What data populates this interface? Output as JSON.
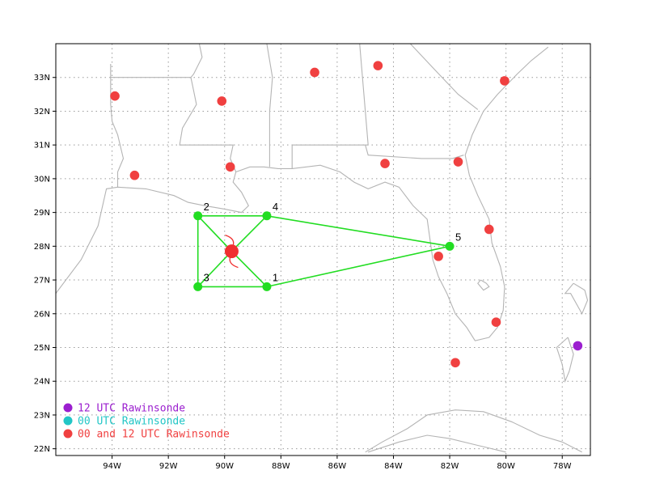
{
  "colors": {
    "frame": "#000000",
    "grid": "#9a9a9a",
    "coast": "#b4b4b4",
    "rawin_both": "#f04040",
    "rawin_12": "#9b1fcf",
    "rawin_00": "#22c6c6",
    "pattern": "#22dd22",
    "center": "#f03030"
  },
  "axes": {
    "lon_ticks": [
      -94,
      -92,
      -90,
      -88,
      -86,
      -84,
      -82,
      -80,
      -78
    ],
    "lon_labels": [
      "94W",
      "92W",
      "90W",
      "88W",
      "86W",
      "84W",
      "82W",
      "80W",
      "78W"
    ],
    "lat_ticks": [
      22,
      23,
      24,
      25,
      26,
      27,
      28,
      29,
      30,
      31,
      32,
      33
    ],
    "lat_labels": [
      "22N",
      "23N",
      "24N",
      "25N",
      "26N",
      "27N",
      "28N",
      "29N",
      "30N",
      "31N",
      "32N",
      "33N"
    ],
    "lon_range": [
      -96.0,
      -77.0
    ],
    "lat_range": [
      21.8,
      34.0
    ],
    "grid": "dotted"
  },
  "legend": {
    "position": "bottom-left",
    "items": [
      {
        "label": "12 UTC Rawinsonde",
        "color": "#9b1fcf"
      },
      {
        "label": "00 UTC Rawinsonde",
        "color": "#22c6c6"
      },
      {
        "label": "00 and 12 UTC Rawinsonde",
        "color": "#f04040"
      }
    ]
  },
  "rawinsondes": [
    {
      "lon": -93.9,
      "lat": 32.45,
      "type": "both"
    },
    {
      "lon": -90.1,
      "lat": 32.3,
      "type": "both"
    },
    {
      "lon": -86.8,
      "lat": 33.15,
      "type": "both"
    },
    {
      "lon": -84.55,
      "lat": 33.35,
      "type": "both"
    },
    {
      "lon": -80.05,
      "lat": 32.9,
      "type": "both"
    },
    {
      "lon": -93.2,
      "lat": 30.1,
      "type": "both"
    },
    {
      "lon": -89.8,
      "lat": 30.35,
      "type": "both"
    },
    {
      "lon": -84.3,
      "lat": 30.45,
      "type": "both"
    },
    {
      "lon": -81.7,
      "lat": 30.5,
      "type": "both"
    },
    {
      "lon": -80.6,
      "lat": 28.5,
      "type": "both"
    },
    {
      "lon": -82.4,
      "lat": 27.7,
      "type": "both"
    },
    {
      "lon": -80.35,
      "lat": 25.75,
      "type": "both"
    },
    {
      "lon": -81.8,
      "lat": 24.55,
      "type": "both"
    },
    {
      "lon": -77.45,
      "lat": 25.05,
      "type": "12"
    }
  ],
  "center": {
    "lon": -89.75,
    "lat": 27.85
  },
  "pattern": {
    "points": [
      {
        "id": "1",
        "lon": -88.5,
        "lat": 26.8
      },
      {
        "id": "2",
        "lon": -90.95,
        "lat": 28.9
      },
      {
        "id": "3",
        "lon": -90.95,
        "lat": 26.8
      },
      {
        "id": "4",
        "lon": -88.5,
        "lat": 28.9
      },
      {
        "id": "5",
        "lon": -82.0,
        "lat": 28.0
      }
    ],
    "path": [
      "1",
      "5",
      "4",
      "2",
      "3",
      "1"
    ]
  },
  "coast_lines": [
    [
      [
        -96,
        26.6
      ],
      [
        -95.1,
        27.6
      ],
      [
        -94.5,
        28.6
      ],
      [
        -94.2,
        29.7
      ],
      [
        -93.8,
        29.75
      ],
      [
        -92.8,
        29.7
      ],
      [
        -91.8,
        29.5
      ],
      [
        -91.3,
        29.3
      ],
      [
        -90.7,
        29.2
      ],
      [
        -90.0,
        29.1
      ],
      [
        -89.4,
        29.0
      ],
      [
        -89.15,
        29.2
      ],
      [
        -89.4,
        29.6
      ],
      [
        -89.7,
        29.9
      ],
      [
        -89.6,
        30.2
      ],
      [
        -89.1,
        30.35
      ],
      [
        -88.6,
        30.35
      ],
      [
        -88.1,
        30.3
      ],
      [
        -87.6,
        30.3
      ],
      [
        -86.6,
        30.4
      ],
      [
        -85.9,
        30.2
      ],
      [
        -85.4,
        29.9
      ],
      [
        -84.9,
        29.7
      ],
      [
        -84.3,
        29.9
      ],
      [
        -83.8,
        29.75
      ],
      [
        -83.3,
        29.2
      ],
      [
        -82.8,
        28.8
      ],
      [
        -82.7,
        28.2
      ],
      [
        -82.6,
        27.6
      ],
      [
        -82.4,
        27.1
      ],
      [
        -82.1,
        26.6
      ],
      [
        -81.8,
        26.0
      ],
      [
        -81.4,
        25.6
      ],
      [
        -81.1,
        25.2
      ],
      [
        -80.6,
        25.3
      ],
      [
        -80.3,
        25.6
      ],
      [
        -80.1,
        26.1
      ],
      [
        -80.05,
        26.8
      ],
      [
        -80.2,
        27.4
      ],
      [
        -80.5,
        28.1
      ],
      [
        -80.6,
        28.8
      ],
      [
        -81.0,
        29.5
      ],
      [
        -81.3,
        30.1
      ],
      [
        -81.45,
        30.7
      ],
      [
        -81.2,
        31.3
      ],
      [
        -80.8,
        32.0
      ],
      [
        -80.3,
        32.5
      ],
      [
        -79.6,
        33.1
      ],
      [
        -79.1,
        33.5
      ],
      [
        -78.5,
        33.9
      ]
    ],
    [
      [
        -93.8,
        29.75
      ],
      [
        -93.8,
        30.2
      ],
      [
        -93.6,
        30.6
      ],
      [
        -93.8,
        31.3
      ],
      [
        -94.0,
        31.7
      ],
      [
        -94.05,
        32.2
      ],
      [
        -94.05,
        33.4
      ]
    ],
    [
      [
        -94.05,
        33.0
      ],
      [
        -91.2,
        33.0
      ],
      [
        -91.1,
        32.6
      ],
      [
        -91.0,
        32.2
      ],
      [
        -91.5,
        31.5
      ],
      [
        -91.6,
        31.0
      ],
      [
        -91.6,
        31.0
      ],
      [
        -89.7,
        31.0
      ],
      [
        -89.8,
        30.6
      ],
      [
        -89.6,
        30.2
      ]
    ],
    [
      [
        -90.9,
        34.0
      ],
      [
        -90.8,
        33.6
      ],
      [
        -91.1,
        33.1
      ],
      [
        -91.2,
        33.0
      ]
    ],
    [
      [
        -88.5,
        34.0
      ],
      [
        -88.3,
        33.0
      ],
      [
        -88.4,
        32.0
      ],
      [
        -88.4,
        31.0
      ],
      [
        -88.4,
        30.35
      ]
    ],
    [
      [
        -85.2,
        34.0
      ],
      [
        -85.1,
        33.0
      ],
      [
        -85.0,
        32.0
      ],
      [
        -84.9,
        31.0
      ],
      [
        -85.0,
        31.0
      ],
      [
        -87.6,
        31.0
      ],
      [
        -87.6,
        30.3
      ]
    ],
    [
      [
        -85.0,
        31.0
      ],
      [
        -84.9,
        30.7
      ],
      [
        -83.0,
        30.6
      ],
      [
        -81.9,
        30.6
      ],
      [
        -81.5,
        30.7
      ]
    ],
    [
      [
        -83.4,
        34.0
      ],
      [
        -82.5,
        33.2
      ],
      [
        -81.7,
        32.5
      ],
      [
        -81.0,
        32.05
      ]
    ],
    [
      [
        -80.9,
        27.0
      ],
      [
        -80.7,
        26.9
      ],
      [
        -80.6,
        26.8
      ],
      [
        -80.8,
        26.7
      ],
      [
        -81.0,
        26.9
      ],
      [
        -80.9,
        27.0
      ]
    ]
  ],
  "cuba_lines": [
    [
      [
        -85.0,
        21.9
      ],
      [
        -84.4,
        22.2
      ],
      [
        -83.5,
        22.6
      ],
      [
        -82.8,
        23.0
      ],
      [
        -81.8,
        23.15
      ],
      [
        -80.8,
        23.1
      ],
      [
        -79.8,
        22.8
      ],
      [
        -78.8,
        22.4
      ],
      [
        -78.0,
        22.2
      ],
      [
        -77.3,
        21.9
      ]
    ],
    [
      [
        -84.9,
        21.9
      ],
      [
        -83.8,
        22.2
      ],
      [
        -82.8,
        22.4
      ],
      [
        -82.0,
        22.3
      ],
      [
        -81.0,
        22.1
      ],
      [
        -80.0,
        21.9
      ]
    ]
  ],
  "bahamas_lines": [
    [
      [
        -77.6,
        26.9
      ],
      [
        -77.2,
        26.7
      ],
      [
        -77.1,
        26.4
      ],
      [
        -77.3,
        26.0
      ],
      [
        -77.7,
        26.6
      ],
      [
        -77.9,
        26.6
      ],
      [
        -77.6,
        26.9
      ]
    ],
    [
      [
        -77.8,
        25.3
      ],
      [
        -77.6,
        24.8
      ],
      [
        -77.75,
        24.3
      ],
      [
        -77.9,
        24.0
      ],
      [
        -78.0,
        24.5
      ],
      [
        -78.2,
        25.0
      ],
      [
        -77.8,
        25.3
      ]
    ],
    [
      [
        -77.0,
        25.1
      ],
      [
        -76.6,
        25.3
      ]
    ]
  ]
}
